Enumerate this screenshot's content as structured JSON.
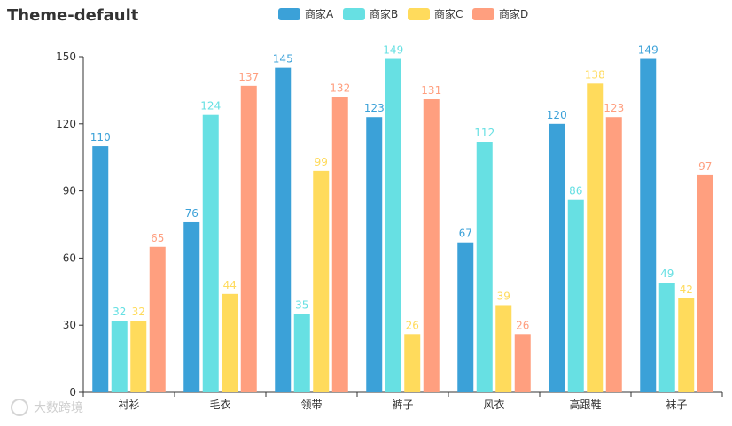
{
  "chart_data": {
    "type": "bar",
    "title": "Theme-default",
    "categories": [
      "衬衫",
      "毛衣",
      "领带",
      "裤子",
      "风衣",
      "高跟鞋",
      "袜子"
    ],
    "series": [
      {
        "name": "商家A",
        "color": "#3ba1d8",
        "values": [
          110,
          76,
          145,
          123,
          67,
          120,
          149
        ]
      },
      {
        "name": "商家B",
        "color": "#67e0e3",
        "values": [
          32,
          124,
          35,
          149,
          112,
          86,
          49
        ]
      },
      {
        "name": "商家C",
        "color": "#ffdb5c",
        "values": [
          32,
          44,
          99,
          26,
          39,
          138,
          42
        ]
      },
      {
        "name": "商家D",
        "color": "#ff9f7f",
        "values": [
          65,
          137,
          132,
          131,
          26,
          123,
          97
        ]
      }
    ],
    "ylim": [
      0,
      150
    ],
    "yticks": [
      0,
      30,
      60,
      90,
      120,
      150
    ],
    "legend_position": "top-center",
    "grid": false,
    "data_labels": true
  },
  "watermark": "大数跨境"
}
